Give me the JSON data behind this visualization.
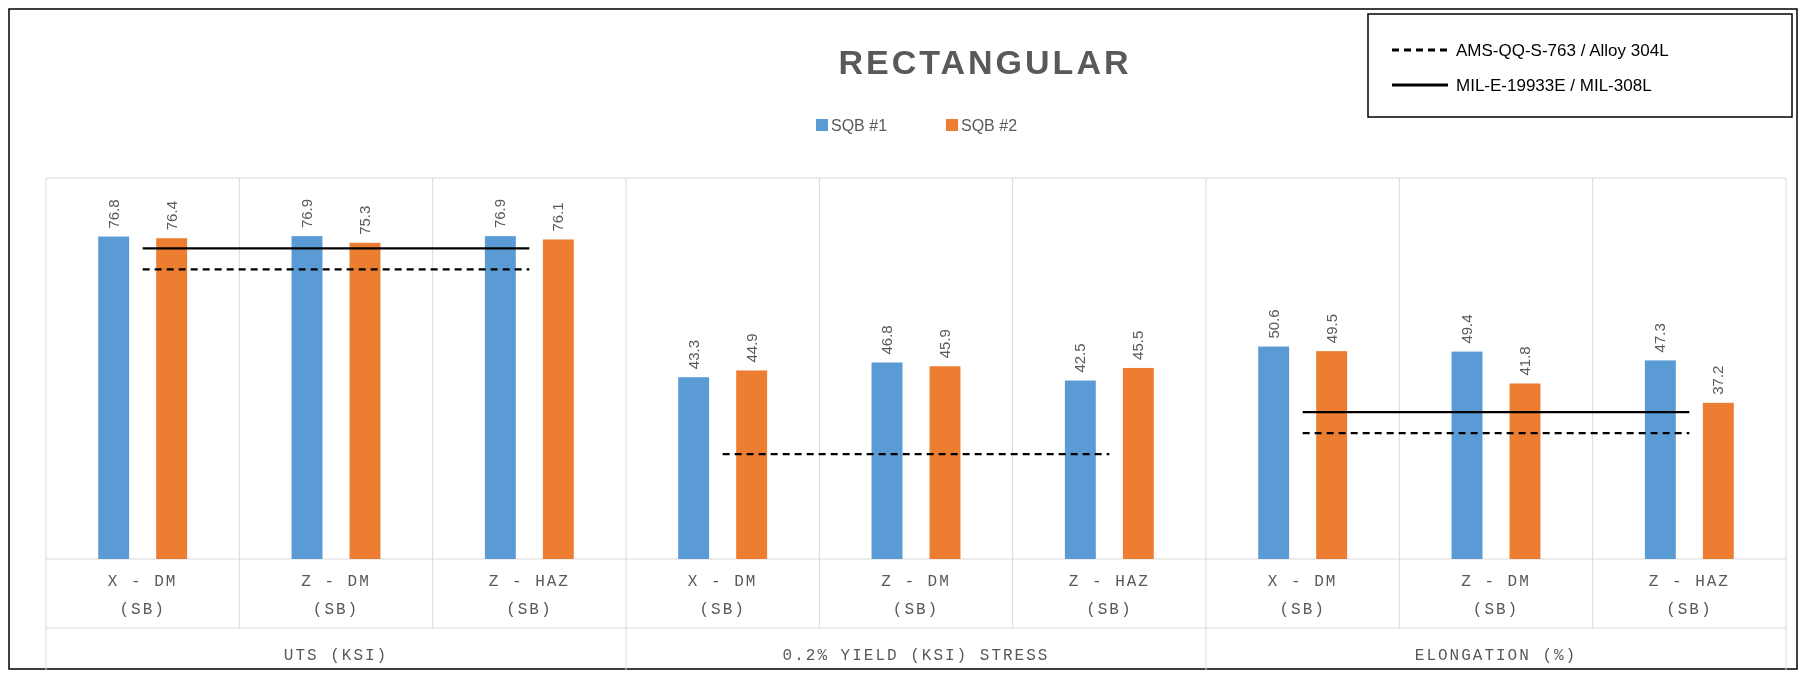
{
  "chart_data": {
    "type": "bar",
    "title": "RECTANGULAR",
    "categories": [
      "X - DM (SB)",
      "Z - DM (SB)",
      "Z - HAZ (SB)",
      "X - DM (SB)",
      "Z - DM (SB)",
      "Z - HAZ (SB)",
      "X - DM (SB)",
      "Z - DM (SB)",
      "Z - HAZ (SB)"
    ],
    "series": [
      {
        "name": "SQB #1",
        "color": "#5b9bd5",
        "values": [
          76.8,
          76.9,
          76.9,
          43.3,
          46.8,
          42.5,
          50.6,
          49.4,
          47.3
        ],
        "value_labels": [
          "76.8",
          "76.9",
          "76.9",
          "43.3",
          "46.8",
          "42.5",
          "50.6",
          "49.4",
          "47.3"
        ]
      },
      {
        "name": "SQB #2",
        "color": "#ed7d31",
        "values": [
          76.4,
          75.3,
          76.1,
          44.9,
          45.9,
          45.5,
          49.5,
          41.8,
          37.2
        ],
        "value_labels": [
          "76.4",
          "75.3",
          "76.1",
          "44.9",
          "45.9",
          "45.5",
          "49.5",
          "41.8",
          "37.2"
        ]
      },
      {
        "name": "AMS-QQ-S-763 / Alloy 304L",
        "type": "line",
        "color": "#000000",
        "line_style": "dashed",
        "values": [
          69,
          69,
          69,
          null,
          null,
          null,
          null,
          null,
          null
        ]
      },
      {
        "type": "line",
        "color": "#000000",
        "line_style": "dashed",
        "values": [
          null,
          null,
          null,
          25,
          25,
          25,
          null,
          null,
          null
        ]
      },
      {
        "type": "line",
        "color": "#000000",
        "line_style": "dashed",
        "values": [
          null,
          null,
          null,
          null,
          null,
          null,
          30,
          30,
          30
        ]
      },
      {
        "name": "MIL-E-19933E / MIL-308L",
        "type": "line",
        "color": "#000000",
        "line_style": "solid",
        "values": [
          74,
          74,
          74,
          null,
          null,
          null,
          null,
          null,
          null
        ]
      },
      {
        "type": "line",
        "color": "#000000",
        "line_style": "solid",
        "values": [
          null,
          null,
          null,
          null,
          null,
          null,
          35,
          35,
          35
        ]
      }
    ],
    "annotations": [
      "UTS (KSI)",
      "0.2% YIELD (KSI) STRESS",
      "ELONGATION (%)"
    ],
    "legend": "top"
  }
}
